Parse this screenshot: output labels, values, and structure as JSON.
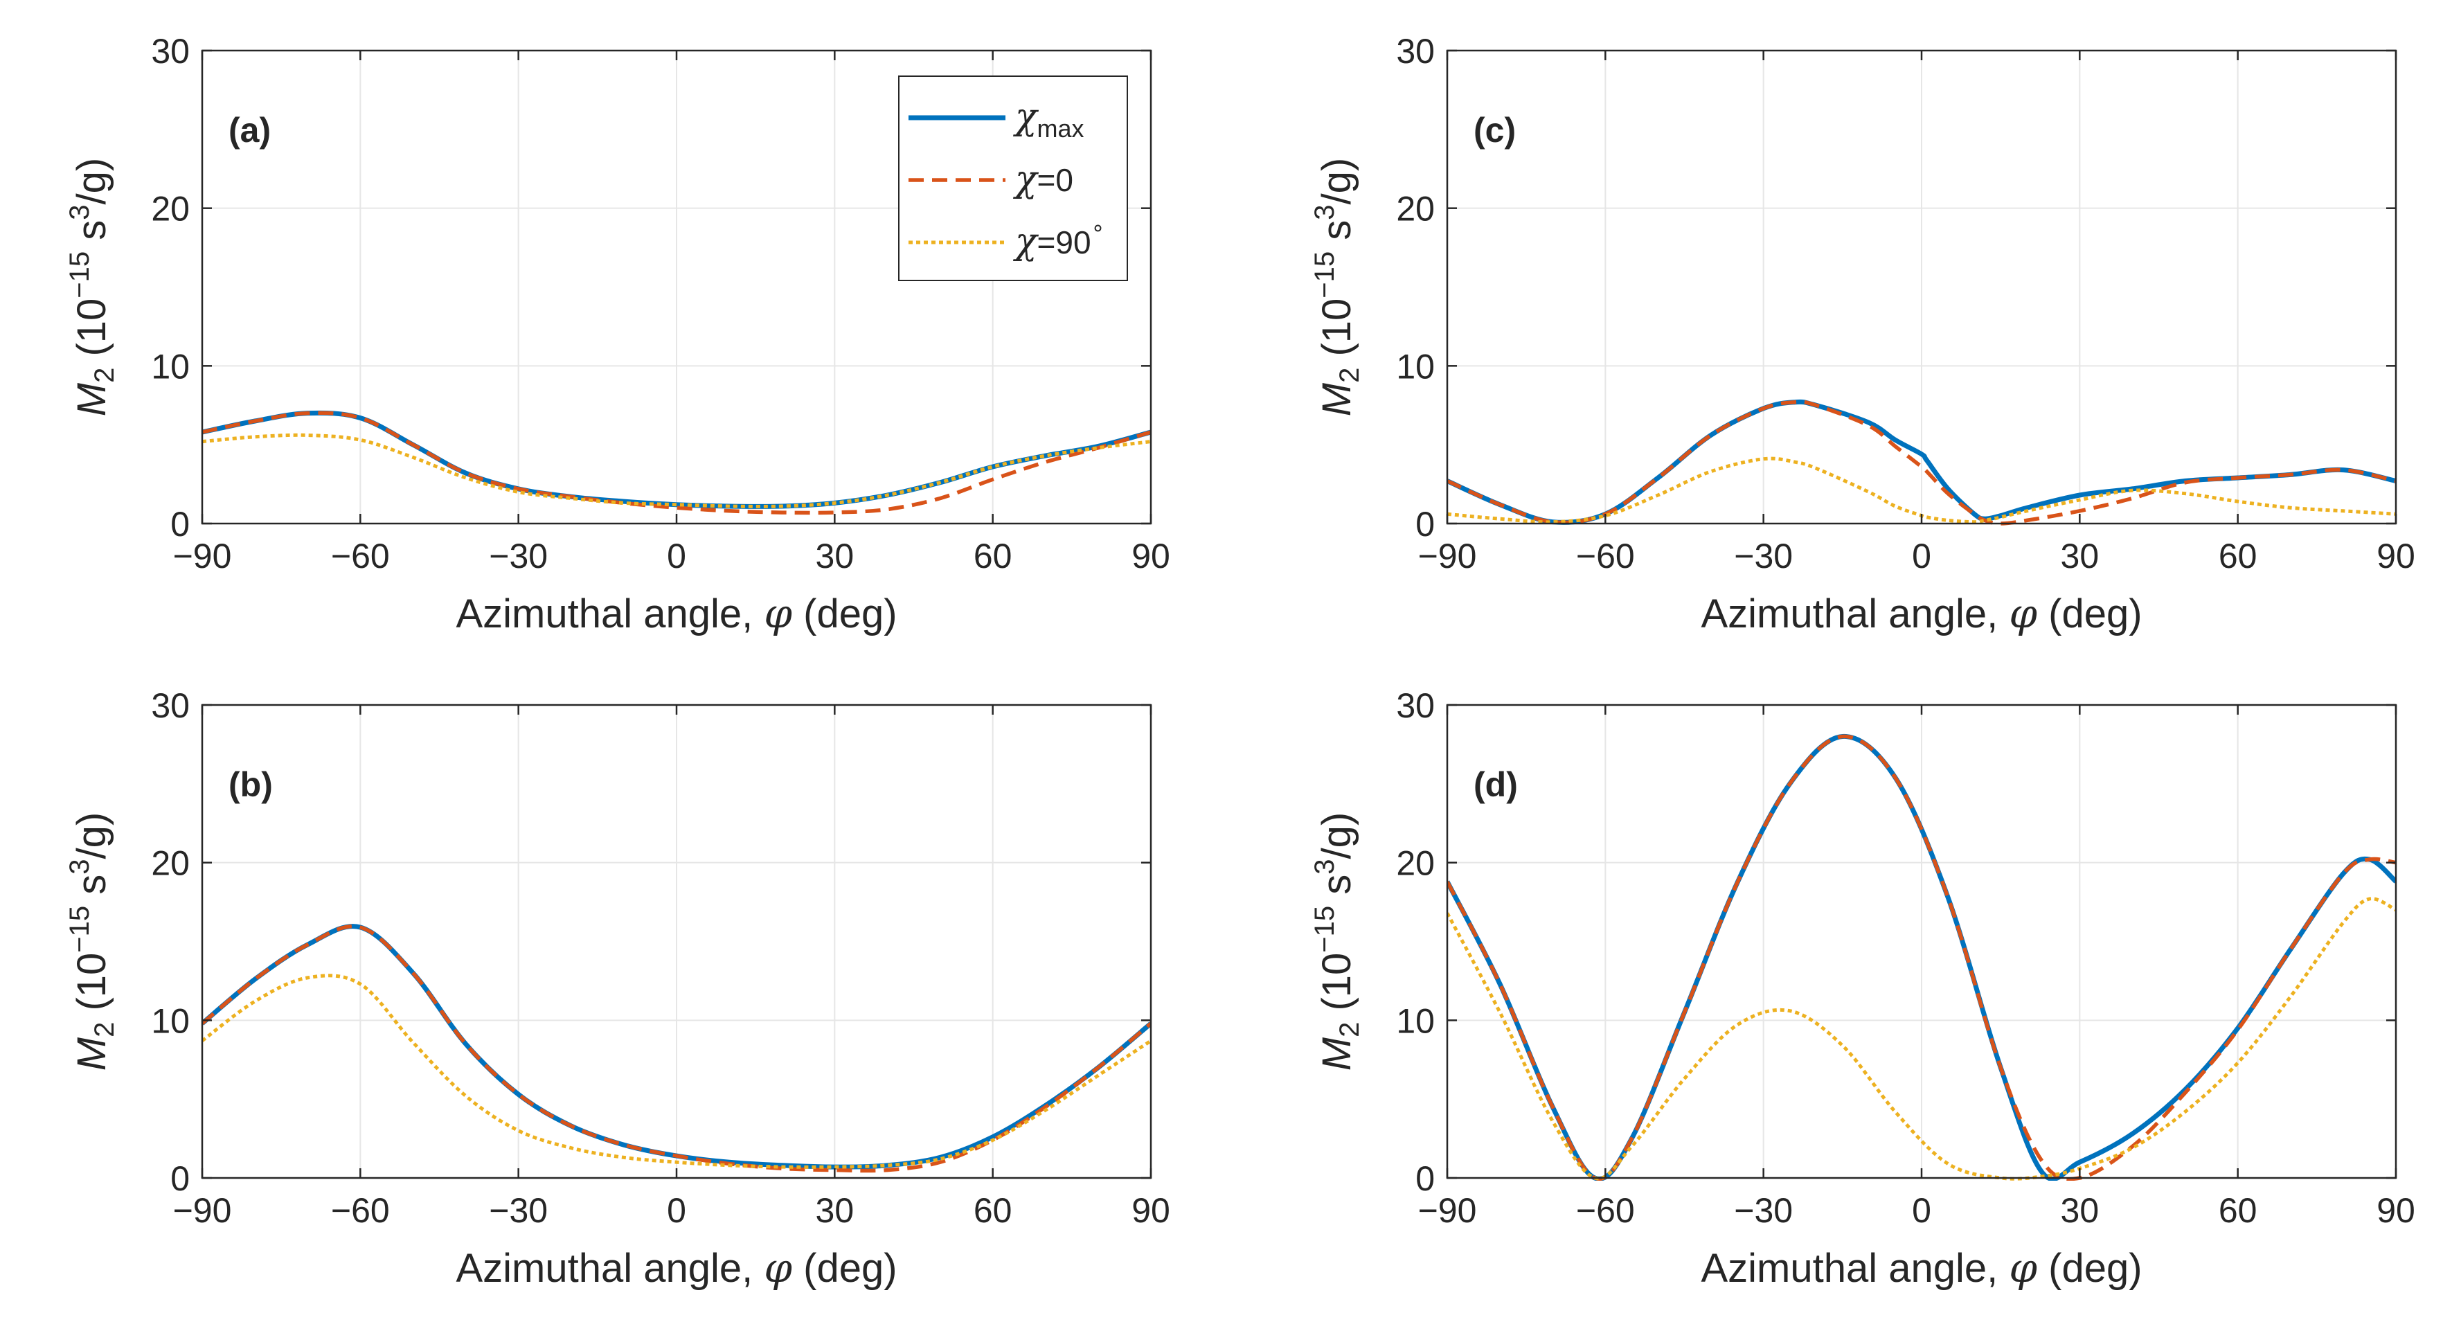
{
  "colors": {
    "chi_max": "#0072BD",
    "chi_0": "#D95319",
    "chi_90": "#EDB120",
    "grid": "#e6e6e6",
    "axis": "#262626"
  },
  "legend": {
    "chi_max": {
      "symbol": "χ",
      "sub": "max"
    },
    "chi_0": {
      "symbol": "χ",
      "rest": "=0"
    },
    "chi_90": {
      "symbol": "χ",
      "rest": "=90",
      "sup": "∘"
    }
  },
  "axes": {
    "xlabel": {
      "text": "Azimuthal angle, ",
      "symbol": "φ",
      "unit": " (deg)"
    },
    "ylabel": {
      "symbol": "M",
      "sub": "2",
      "pre": " (10",
      "sup1": "−15",
      "mid": " s",
      "sup2": "3",
      "post": "/g)"
    },
    "xticks": [
      "−90",
      "−60",
      "−30",
      "0",
      "30",
      "60",
      "90"
    ],
    "yticks": [
      "0",
      "10",
      "20",
      "30"
    ],
    "xlim": [
      -90,
      90
    ],
    "ylim": [
      0,
      30
    ],
    "grid": true
  },
  "chart_data": [
    {
      "type": "line",
      "panel": "(a)",
      "xlabel": "Azimuthal angle, φ (deg)",
      "ylabel": "M2 (10−15 s3/g)",
      "xlim": [
        -90,
        90
      ],
      "ylim": [
        0,
        30
      ],
      "grid": true,
      "legend": "top-right",
      "x": [
        -90,
        -80,
        -70,
        -60,
        -50,
        -40,
        -30,
        -20,
        -10,
        0,
        10,
        20,
        30,
        40,
        50,
        60,
        70,
        80,
        90
      ],
      "series": [
        {
          "name": "χmax",
          "values": [
            5.8,
            6.5,
            7.0,
            6.7,
            5.0,
            3.2,
            2.2,
            1.7,
            1.4,
            1.2,
            1.1,
            1.1,
            1.3,
            1.8,
            2.6,
            3.6,
            4.3,
            4.9,
            5.8
          ]
        },
        {
          "name": "χ=0",
          "values": [
            5.8,
            6.5,
            7.0,
            6.7,
            5.0,
            3.2,
            2.2,
            1.7,
            1.3,
            1.0,
            0.8,
            0.7,
            0.7,
            0.9,
            1.6,
            2.8,
            3.9,
            4.8,
            5.8
          ]
        },
        {
          "name": "χ=90∘",
          "values": [
            5.2,
            5.5,
            5.6,
            5.3,
            4.2,
            2.9,
            2.0,
            1.6,
            1.3,
            1.2,
            1.1,
            1.1,
            1.3,
            1.8,
            2.6,
            3.6,
            4.3,
            4.8,
            5.2
          ]
        }
      ]
    },
    {
      "type": "line",
      "panel": "(b)",
      "xlabel": "Azimuthal angle, φ (deg)",
      "ylabel": "M2 (10−15 s3/g)",
      "xlim": [
        -90,
        90
      ],
      "ylim": [
        0,
        30
      ],
      "grid": true,
      "x": [
        -90,
        -80,
        -70,
        -60,
        -50,
        -40,
        -30,
        -20,
        -10,
        0,
        10,
        20,
        30,
        40,
        50,
        60,
        70,
        80,
        90
      ],
      "series": [
        {
          "name": "χmax",
          "values": [
            9.8,
            12.6,
            14.8,
            15.9,
            13.0,
            8.5,
            5.3,
            3.3,
            2.1,
            1.4,
            1.0,
            0.8,
            0.7,
            0.8,
            1.3,
            2.6,
            4.6,
            7.0,
            9.8
          ]
        },
        {
          "name": "χ=0",
          "values": [
            9.8,
            12.6,
            14.8,
            15.9,
            13.0,
            8.5,
            5.3,
            3.3,
            2.1,
            1.4,
            0.9,
            0.6,
            0.5,
            0.5,
            1.0,
            2.4,
            4.5,
            7.0,
            9.8
          ]
        },
        {
          "name": "χ=90∘",
          "values": [
            8.7,
            11.2,
            12.7,
            12.3,
            8.6,
            5.2,
            3.0,
            1.9,
            1.3,
            1.0,
            0.8,
            0.7,
            0.7,
            0.8,
            1.2,
            2.4,
            4.3,
            6.5,
            8.7
          ]
        }
      ]
    },
    {
      "type": "line",
      "panel": "(c)",
      "xlabel": "Azimuthal angle, φ (deg)",
      "ylabel": "M2 (10−15 s3/g)",
      "xlim": [
        -90,
        90
      ],
      "ylim": [
        0,
        30
      ],
      "grid": true,
      "x": [
        -90,
        -80,
        -70,
        -60,
        -50,
        -40,
        -30,
        -24,
        -20,
        -10,
        -5,
        0,
        1,
        5,
        10,
        12,
        15,
        20,
        30,
        40,
        50,
        60,
        70,
        80,
        90
      ],
      "series": [
        {
          "name": "χmax",
          "values": [
            2.7,
            1.2,
            0.1,
            0.6,
            2.9,
            5.6,
            7.3,
            7.7,
            7.5,
            6.4,
            5.3,
            4.4,
            4.0,
            2.2,
            0.6,
            0.3,
            0.5,
            1.0,
            1.8,
            2.2,
            2.7,
            2.9,
            3.1,
            3.4,
            2.7
          ]
        },
        {
          "name": "χ=0",
          "values": [
            2.7,
            1.2,
            0.1,
            0.6,
            2.9,
            5.6,
            7.3,
            7.7,
            7.5,
            6.2,
            4.9,
            3.6,
            3.3,
            1.9,
            0.6,
            0.2,
            0.0,
            0.2,
            0.8,
            1.6,
            2.6,
            2.9,
            3.1,
            3.4,
            2.7
          ]
        },
        {
          "name": "χ=90∘",
          "values": [
            0.6,
            0.3,
            0.1,
            0.5,
            1.8,
            3.3,
            4.1,
            3.9,
            3.5,
            2.0,
            1.1,
            0.5,
            0.4,
            0.2,
            0.1,
            0.2,
            0.4,
            0.8,
            1.5,
            2.1,
            1.9,
            1.4,
            1.0,
            0.8,
            0.6
          ]
        }
      ]
    },
    {
      "type": "line",
      "panel": "(d)",
      "xlabel": "Azimuthal angle, φ (deg)",
      "ylabel": "M2 (10−15 s3/g)",
      "xlim": [
        -90,
        90
      ],
      "ylim": [
        0,
        30
      ],
      "grid": true,
      "x": [
        -90,
        -80,
        -70,
        -62,
        -55,
        -45,
        -35,
        -25,
        -15,
        -5,
        5,
        15,
        23,
        30,
        40,
        50,
        60,
        70,
        80,
        85,
        90
      ],
      "series": [
        {
          "name": "χmax",
          "values": [
            18.8,
            12.3,
            4.5,
            0.0,
            2.5,
            10.5,
            18.7,
            25.0,
            28.0,
            25.4,
            17.8,
            7.0,
            0.3,
            1.0,
            2.8,
            5.6,
            9.5,
            14.5,
            19.3,
            20.2,
            18.8
          ]
        },
        {
          "name": "χ=0",
          "values": [
            18.8,
            12.3,
            4.5,
            0.0,
            2.5,
            10.5,
            18.7,
            25.0,
            28.0,
            25.4,
            17.8,
            7.0,
            1.0,
            0.0,
            2.0,
            5.4,
            9.4,
            14.5,
            19.3,
            20.2,
            20.0
          ]
        },
        {
          "name": "χ=90∘",
          "values": [
            16.8,
            10.5,
            3.6,
            0.0,
            2.0,
            6.3,
            9.7,
            10.6,
            8.4,
            4.2,
            0.9,
            0.0,
            0.1,
            0.6,
            1.9,
            4.2,
            7.3,
            11.5,
            16.2,
            17.7,
            17.0
          ]
        }
      ]
    }
  ]
}
